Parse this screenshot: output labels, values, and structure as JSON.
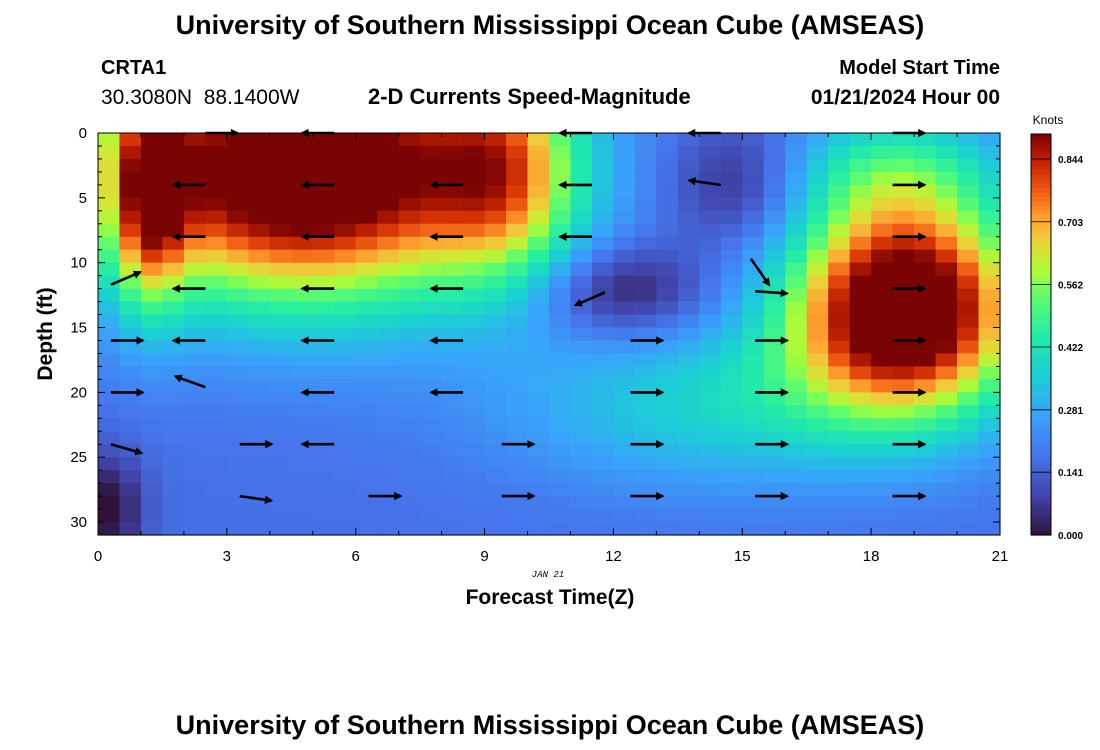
{
  "header": {
    "title": "University of Southern Mississippi Ocean Cube (AMSEAS)",
    "station_id": "CRTA1",
    "coordinates": "30.3080N  88.1400W",
    "subtitle": "2-D Currents Speed-Magnitude",
    "model_start_label": "Model Start Time",
    "model_start_value": "01/21/2024 Hour 00"
  },
  "footer": {
    "title": "University of Southern Mississippi Ocean Cube (AMSEAS)"
  },
  "chart_data": {
    "type": "heatmap",
    "title": "2-D Currents Speed-Magnitude",
    "xlabel": "Forecast Time(Z)",
    "ylabel": "Depth (ft)",
    "date_label": "JAN 21",
    "xlim": [
      0,
      21
    ],
    "ylim": [
      31,
      0
    ],
    "x_ticks": [
      0,
      3,
      6,
      9,
      12,
      15,
      18,
      21
    ],
    "y_ticks": [
      0,
      5,
      10,
      15,
      20,
      25,
      30
    ],
    "colorbar": {
      "label": "Knots",
      "range": [
        0.0,
        0.9
      ],
      "ticks": [
        "0.844",
        "0.703",
        "0.562",
        "0.422",
        "0.281",
        "0.141",
        "0.000"
      ],
      "tick_values": [
        0.844,
        0.703,
        0.562,
        0.422,
        0.281,
        0.141,
        0.0
      ]
    },
    "speed_blobs": [
      {
        "x": 4.8,
        "y": 3,
        "sx": 3.4,
        "sy": 7,
        "amp": 0.9
      },
      {
        "x": 9.5,
        "y": 3,
        "sx": 1.2,
        "sy": 6,
        "amp": 0.35
      },
      {
        "x": 18.8,
        "y": 13.5,
        "sx": 1.9,
        "sy": 5.5,
        "amp": 0.9
      },
      {
        "x": 18.5,
        "y": 3,
        "sx": 1.8,
        "sy": 3.5,
        "amp": 0.25
      },
      {
        "x": 14.5,
        "y": 21,
        "sx": 3.5,
        "sy": 4.5,
        "amp": 0.2
      },
      {
        "x": 1.2,
        "y": 5,
        "sx": 0.6,
        "sy": 6,
        "amp": 0.4
      }
    ],
    "slow_spots": [
      {
        "x": 12.2,
        "y": 12.2,
        "sx": 1.4,
        "sy": 2.5,
        "amp": 0.18
      },
      {
        "x": 15,
        "y": 4,
        "sx": 1.2,
        "sy": 3.5,
        "amp": 0.15
      },
      {
        "x": 0.2,
        "y": 29,
        "sx": 0.6,
        "sy": 3,
        "amp": 0.18
      }
    ],
    "background_speed": 0.17,
    "vectors": [
      {
        "t": 2.5,
        "d": 0,
        "u": 0.6,
        "v": 0
      },
      {
        "t": 5.5,
        "d": 0,
        "u": -0.7,
        "v": 0
      },
      {
        "t": 11.5,
        "d": 0,
        "u": -0.6,
        "v": 0
      },
      {
        "t": 14.5,
        "d": 0,
        "u": -0.8,
        "v": 0
      },
      {
        "t": 18.5,
        "d": 0,
        "u": 0.7,
        "v": 0
      },
      {
        "t": 2.5,
        "d": 4,
        "u": -0.7,
        "v": 0
      },
      {
        "t": 5.5,
        "d": 4,
        "u": -0.7,
        "v": 0
      },
      {
        "t": 8.5,
        "d": 4,
        "u": -0.7,
        "v": 0
      },
      {
        "t": 11.5,
        "d": 4,
        "u": -0.7,
        "v": 0
      },
      {
        "t": 14.5,
        "d": 4,
        "u": -0.7,
        "v": -0.1
      },
      {
        "t": 18.5,
        "d": 4,
        "u": 0.7,
        "v": 0
      },
      {
        "t": 2.5,
        "d": 8,
        "u": -0.7,
        "v": 0
      },
      {
        "t": 5.5,
        "d": 8,
        "u": -0.7,
        "v": 0
      },
      {
        "t": 8.5,
        "d": 8,
        "u": -0.7,
        "v": 0
      },
      {
        "t": 11.5,
        "d": 8,
        "u": -0.7,
        "v": 0
      },
      {
        "t": 15.2,
        "d": 9.7,
        "u": 0.35,
        "v": 0.5
      },
      {
        "t": 18.5,
        "d": 8,
        "u": 0.7,
        "v": 0
      },
      {
        "t": 0.3,
        "d": 11.7,
        "u": 0.7,
        "v": -0.3
      },
      {
        "t": 2.5,
        "d": 12,
        "u": -0.7,
        "v": 0
      },
      {
        "t": 5.5,
        "d": 12,
        "u": -0.7,
        "v": 0
      },
      {
        "t": 8.5,
        "d": 12,
        "u": -0.7,
        "v": 0
      },
      {
        "t": 11.8,
        "d": 12.3,
        "u": -0.7,
        "v": 0.3
      },
      {
        "t": 15.3,
        "d": 12.2,
        "u": 0.7,
        "v": 0.05
      },
      {
        "t": 18.5,
        "d": 12,
        "u": 0.7,
        "v": 0
      },
      {
        "t": 0.3,
        "d": 16,
        "u": 0.7,
        "v": 0
      },
      {
        "t": 2.5,
        "d": 16,
        "u": -0.7,
        "v": 0
      },
      {
        "t": 5.5,
        "d": 16,
        "u": -0.7,
        "v": 0
      },
      {
        "t": 8.5,
        "d": 16,
        "u": -0.7,
        "v": 0
      },
      {
        "t": 12.4,
        "d": 16,
        "u": 0.7,
        "v": 0
      },
      {
        "t": 15.3,
        "d": 16,
        "u": 0.7,
        "v": 0
      },
      {
        "t": 18.5,
        "d": 16,
        "u": 0.7,
        "v": 0
      },
      {
        "t": 0.3,
        "d": 20,
        "u": 0.7,
        "v": 0
      },
      {
        "t": 2.5,
        "d": 19.6,
        "u": -0.7,
        "v": -0.25
      },
      {
        "t": 5.5,
        "d": 20,
        "u": -0.7,
        "v": 0
      },
      {
        "t": 8.5,
        "d": 20,
        "u": -0.7,
        "v": 0
      },
      {
        "t": 12.4,
        "d": 20,
        "u": 0.7,
        "v": 0
      },
      {
        "t": 15.3,
        "d": 20,
        "u": 0.7,
        "v": 0
      },
      {
        "t": 18.5,
        "d": 20,
        "u": 0.7,
        "v": 0
      },
      {
        "t": 0.3,
        "d": 24,
        "u": 0.7,
        "v": 0.2
      },
      {
        "t": 3.3,
        "d": 24,
        "u": 0.7,
        "v": 0
      },
      {
        "t": 5.5,
        "d": 24,
        "u": -0.7,
        "v": 0
      },
      {
        "t": 9.4,
        "d": 24,
        "u": 0.7,
        "v": 0
      },
      {
        "t": 12.4,
        "d": 24,
        "u": 0.7,
        "v": 0
      },
      {
        "t": 15.3,
        "d": 24,
        "u": 0.7,
        "v": 0
      },
      {
        "t": 18.5,
        "d": 24,
        "u": 0.7,
        "v": 0
      },
      {
        "t": 3.3,
        "d": 28,
        "u": 0.7,
        "v": 0.1
      },
      {
        "t": 6.3,
        "d": 28,
        "u": 0.7,
        "v": 0
      },
      {
        "t": 9.4,
        "d": 28,
        "u": 0.7,
        "v": 0
      },
      {
        "t": 12.4,
        "d": 28,
        "u": 0.7,
        "v": 0
      },
      {
        "t": 15.3,
        "d": 28,
        "u": 0.7,
        "v": 0
      },
      {
        "t": 18.5,
        "d": 28,
        "u": 0.7,
        "v": 0
      }
    ]
  }
}
